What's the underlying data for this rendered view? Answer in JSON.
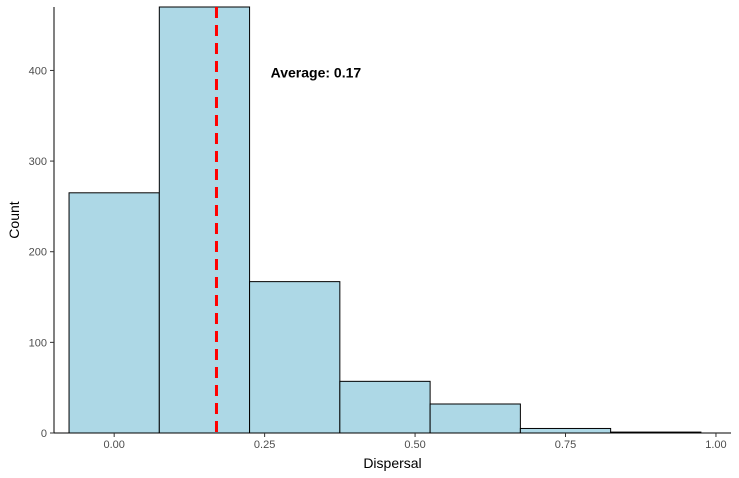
{
  "chart_data": {
    "type": "bar",
    "subtype": "histogram",
    "title": "",
    "xlabel": "Dispersal",
    "ylabel": "Count",
    "bins": [
      {
        "start": -0.075,
        "end": 0.075,
        "count": 265
      },
      {
        "start": 0.075,
        "end": 0.225,
        "count": 470
      },
      {
        "start": 0.225,
        "end": 0.375,
        "count": 167
      },
      {
        "start": 0.375,
        "end": 0.525,
        "count": 57
      },
      {
        "start": 0.525,
        "end": 0.675,
        "count": 32
      },
      {
        "start": 0.675,
        "end": 0.825,
        "count": 5
      },
      {
        "start": 0.825,
        "end": 0.975,
        "count": 1
      }
    ],
    "xlim": [
      -0.1,
      1.025
    ],
    "ylim": [
      0,
      470
    ],
    "x_ticks": [
      0.0,
      0.25,
      0.5,
      0.75,
      1.0
    ],
    "x_tick_labels": [
      "0.00",
      "0.25",
      "0.50",
      "0.75",
      "1.00"
    ],
    "y_ticks": [
      0,
      100,
      200,
      300,
      400
    ],
    "y_tick_labels": [
      "0",
      "100",
      "200",
      "300",
      "400"
    ],
    "mean_line": {
      "x": 0.17,
      "color": "#ff0000",
      "style": "dashed"
    },
    "annotation": {
      "text": "Average:  0.17",
      "x": 0.26,
      "y": 398
    },
    "bar_fill": "#add8e6",
    "bar_stroke": "#000000",
    "grid": false
  }
}
